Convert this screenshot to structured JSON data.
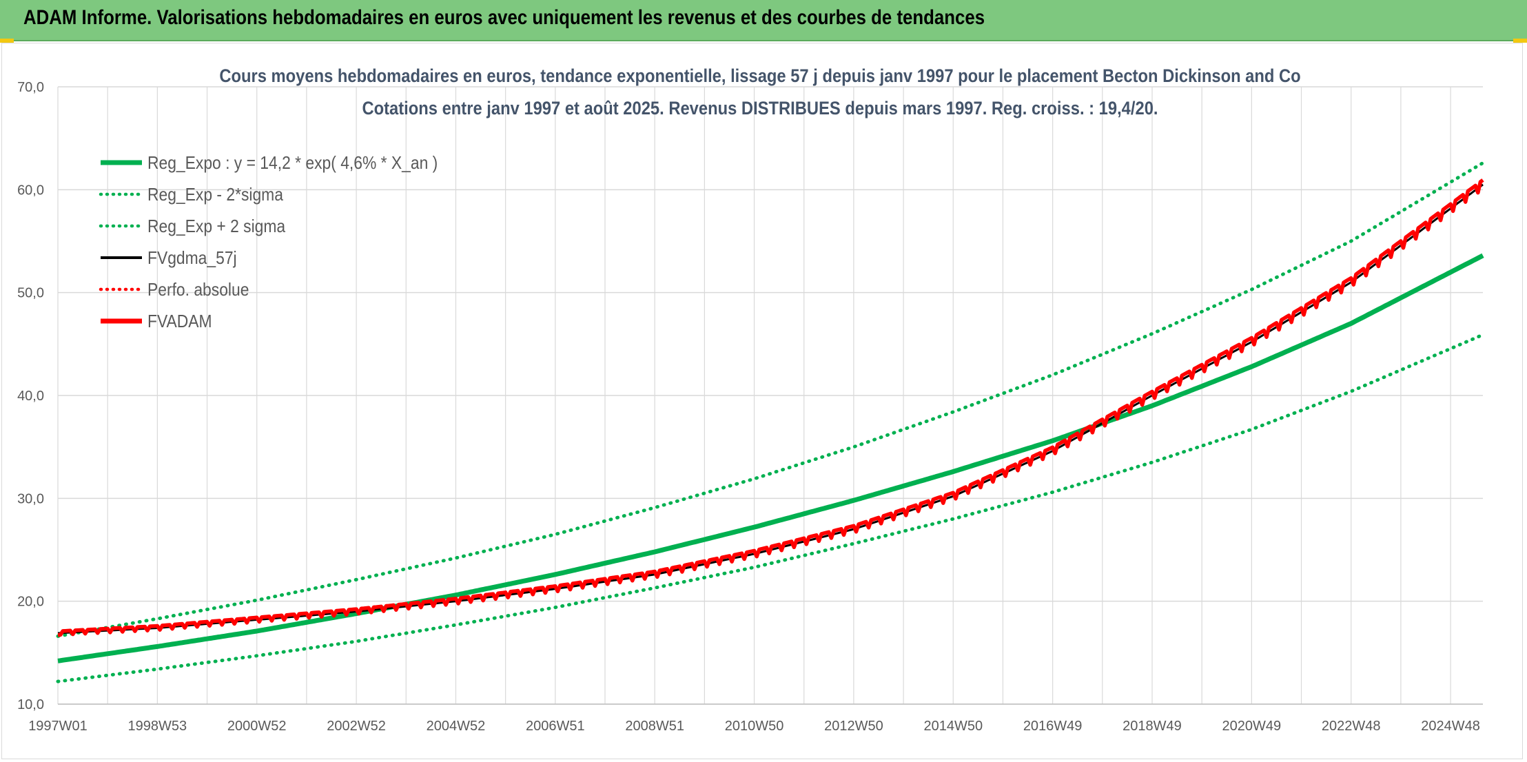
{
  "header": {
    "title": "ADAM Informe. Valorisations hebdomadaires en euros avec uniquement les revenus et des courbes de tendances"
  },
  "colors": {
    "header_bg": "#7ec87f",
    "trend": "#00b050",
    "fvadam": "#ff0000",
    "gdma": "#000000",
    "grid": "#d9d9d9"
  },
  "chart_data": {
    "type": "line",
    "title_line1": "Cours moyens hebdomadaires en euros, tendance exponentielle, lissage 57 j depuis janv 1997 pour le placement Becton Dickinson and Co",
    "title_line2": "Cotations entre janv 1997 et août 2025. Revenus DISTRIBUES depuis mars 1997. Reg. croiss. : 19,4/20.",
    "y_ticks": [
      "70,0",
      "60,0",
      "50,0",
      "40,0",
      "30,0",
      "20,0",
      "10,0"
    ],
    "ylim": [
      10,
      70
    ],
    "x_ticks": [
      "1997W01",
      "1998W53",
      "2000W52",
      "2002W52",
      "2004W52",
      "2006W51",
      "2008W51",
      "2010W50",
      "2012W50",
      "2014W50",
      "2016W49",
      "2018W49",
      "2020W49",
      "2022W48",
      "2024W48"
    ],
    "x_tick_years": [
      1997.0,
      1999.0,
      2001.0,
      2003.0,
      2005.0,
      2007.0,
      2009.0,
      2011.0,
      2013.0,
      2015.0,
      2017.0,
      2019.0,
      2021.0,
      2023.0,
      2025.0
    ],
    "xlim": [
      1997.0,
      2025.65
    ],
    "legend": [
      {
        "label": "Reg_Expo : y = 14,2 * exp( 4,6% *  X_an )",
        "style": "solid-thick",
        "color": "#00b050"
      },
      {
        "label": "Reg_Exp - 2*sigma",
        "style": "dotted",
        "color": "#00b050"
      },
      {
        "label": "Reg_Exp + 2 sigma",
        "style": "dotted",
        "color": "#00b050"
      },
      {
        "label": "FVgdma_57j",
        "style": "solid",
        "color": "#000000"
      },
      {
        "label": "Perfo. absolue",
        "style": "dotted",
        "color": "#ff0000"
      },
      {
        "label": "FVADAM",
        "style": "solid-thick",
        "color": "#ff0000"
      }
    ],
    "series": [
      {
        "name": "Reg_Expo : y = 14,2 * exp( 4,6% *  X_an )",
        "x": [
          1997,
          1999,
          2001,
          2003,
          2005,
          2007,
          2009,
          2011,
          2013,
          2015,
          2017,
          2019,
          2021,
          2023,
          2025.65
        ],
        "y": [
          14.2,
          15.6,
          17.1,
          18.8,
          20.6,
          22.6,
          24.8,
          27.2,
          29.8,
          32.6,
          35.6,
          39.0,
          42.8,
          47.0,
          53.6
        ]
      },
      {
        "name": "Reg_Exp - 2*sigma",
        "x": [
          1997,
          1999,
          2001,
          2003,
          2005,
          2007,
          2009,
          2011,
          2013,
          2015,
          2017,
          2019,
          2021,
          2023,
          2025.65
        ],
        "y": [
          12.2,
          13.4,
          14.7,
          16.1,
          17.7,
          19.4,
          21.3,
          23.3,
          25.6,
          28.0,
          30.6,
          33.5,
          36.7,
          40.4,
          45.9
        ]
      },
      {
        "name": "Reg_Exp + 2 sigma",
        "x": [
          1997,
          1999,
          2001,
          2003,
          2005,
          2007,
          2009,
          2011,
          2013,
          2015,
          2017,
          2019,
          2021,
          2023,
          2025.65
        ],
        "y": [
          16.6,
          18.3,
          20.1,
          22.1,
          24.2,
          26.5,
          29.1,
          31.9,
          35.0,
          38.4,
          42.0,
          46.0,
          50.3,
          55.0,
          62.6
        ]
      },
      {
        "name": "FVgdma_57j",
        "x": [
          1997,
          1999,
          2001,
          2003,
          2005,
          2007,
          2009,
          2011,
          2013,
          2015,
          2017,
          2019,
          2021,
          2023,
          2025.65
        ],
        "y": [
          16.9,
          17.4,
          18.2,
          19.0,
          20.0,
          21.2,
          22.6,
          24.6,
          27.0,
          30.2,
          34.6,
          40.0,
          45.2,
          51.0,
          60.5
        ]
      },
      {
        "name": "FVADAM",
        "x": [
          1997,
          1999,
          2001,
          2003,
          2005,
          2007,
          2009,
          2011,
          2013,
          2015,
          2017,
          2019,
          2021,
          2023,
          2025.65
        ],
        "y": [
          16.9,
          17.4,
          18.2,
          19.0,
          20.0,
          21.2,
          22.6,
          24.6,
          27.0,
          30.2,
          34.6,
          40.0,
          45.2,
          51.0,
          60.5
        ]
      }
    ]
  }
}
